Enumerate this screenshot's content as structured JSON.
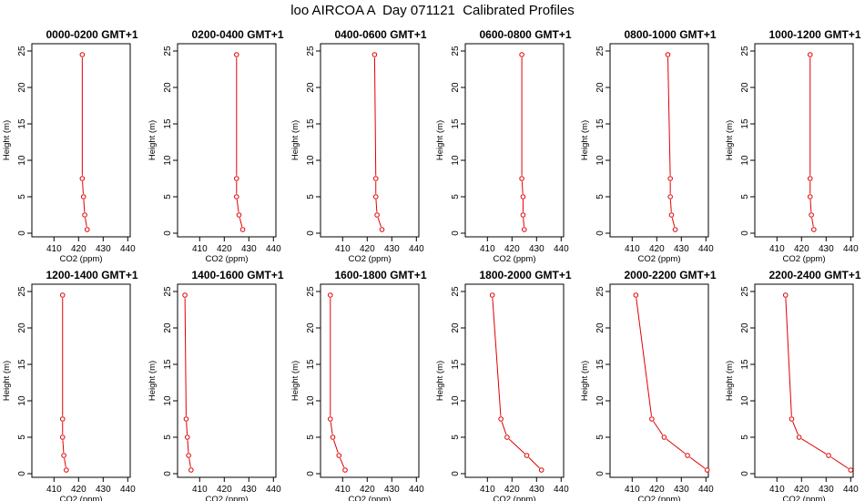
{
  "title": "loo AIRCOA A  Day 071121  Calibrated Profiles",
  "chart_data": {
    "type": "line",
    "xlabel": "CO2 (ppm)",
    "ylabel": "Height (m)",
    "xlim": [
      401,
      441
    ],
    "ylim": [
      -0.5,
      26
    ],
    "xticks": [
      410,
      420,
      430,
      440
    ],
    "yticks": [
      0,
      5,
      10,
      15,
      20,
      25
    ],
    "heights": [
      0.5,
      2.5,
      5.0,
      7.5,
      24.5
    ],
    "line_color": "#e00000",
    "panels": [
      {
        "title": "0000-0200 GMT+1",
        "co2": [
          423.5,
          422.5,
          422.0,
          421.5,
          421.5
        ]
      },
      {
        "title": "0200-0400 GMT+1",
        "co2": [
          427.5,
          426.0,
          425.0,
          425.0,
          425.0
        ]
      },
      {
        "title": "0400-0600 GMT+1",
        "co2": [
          426.0,
          424.0,
          423.5,
          423.5,
          423.0
        ]
      },
      {
        "title": "0600-0800 GMT+1",
        "co2": [
          425.0,
          424.5,
          424.5,
          424.0,
          424.0
        ]
      },
      {
        "title": "0800-1000 GMT+1",
        "co2": [
          427.5,
          426.0,
          425.5,
          425.5,
          424.5
        ]
      },
      {
        "title": "1000-1200 GMT+1",
        "co2": [
          425.0,
          424.0,
          423.5,
          423.5,
          423.5
        ]
      },
      {
        "title": "1200-1400 GMT+1",
        "co2": [
          415.0,
          414.0,
          413.5,
          413.5,
          413.5
        ]
      },
      {
        "title": "1400-1600 GMT+1",
        "co2": [
          406.5,
          405.5,
          405.0,
          404.5,
          404.0
        ]
      },
      {
        "title": "1600-1800 GMT+1",
        "co2": [
          411.0,
          408.5,
          406.0,
          405.0,
          405.0
        ]
      },
      {
        "title": "1800-2000 GMT+1",
        "co2": [
          432.0,
          426.0,
          418.0,
          415.5,
          412.0
        ]
      },
      {
        "title": "2000-2200 GMT+1",
        "co2": [
          440.5,
          432.5,
          423.0,
          418.0,
          411.5
        ]
      },
      {
        "title": "2200-2400 GMT+1",
        "co2": [
          440.0,
          431.0,
          419.0,
          416.0,
          413.5
        ]
      }
    ]
  }
}
